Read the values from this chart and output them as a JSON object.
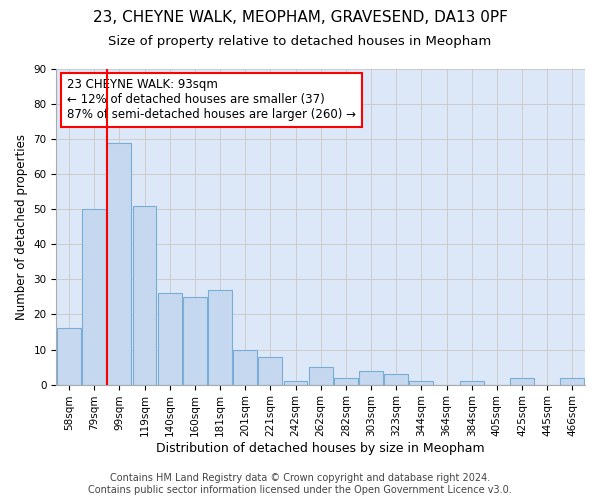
{
  "title1": "23, CHEYNE WALK, MEOPHAM, GRAVESEND, DA13 0PF",
  "title2": "Size of property relative to detached houses in Meopham",
  "xlabel": "Distribution of detached houses by size in Meopham",
  "ylabel": "Number of detached properties",
  "categories": [
    "58sqm",
    "79sqm",
    "99sqm",
    "119sqm",
    "140sqm",
    "160sqm",
    "181sqm",
    "201sqm",
    "221sqm",
    "242sqm",
    "262sqm",
    "282sqm",
    "303sqm",
    "323sqm",
    "344sqm",
    "364sqm",
    "384sqm",
    "405sqm",
    "425sqm",
    "445sqm",
    "466sqm"
  ],
  "values": [
    16,
    50,
    69,
    51,
    26,
    25,
    27,
    10,
    8,
    1,
    5,
    2,
    4,
    3,
    1,
    0,
    1,
    0,
    2,
    0,
    2
  ],
  "bar_color": "#c5d8f0",
  "bar_edge_color": "#7aadd4",
  "annotation_text": "23 CHEYNE WALK: 93sqm\n← 12% of detached houses are smaller (37)\n87% of semi-detached houses are larger (260) →",
  "annotation_box_color": "white",
  "annotation_box_edge_color": "red",
  "marker_line_color": "red",
  "ylim": [
    0,
    90
  ],
  "yticks": [
    0,
    10,
    20,
    30,
    40,
    50,
    60,
    70,
    80,
    90
  ],
  "grid_color": "#cccccc",
  "background_color": "#dce8f8",
  "footer_line1": "Contains HM Land Registry data © Crown copyright and database right 2024.",
  "footer_line2": "Contains public sector information licensed under the Open Government Licence v3.0.",
  "title1_fontsize": 11,
  "title2_fontsize": 9.5,
  "xlabel_fontsize": 9,
  "ylabel_fontsize": 8.5,
  "tick_fontsize": 7.5,
  "annotation_fontsize": 8.5,
  "footer_fontsize": 7
}
